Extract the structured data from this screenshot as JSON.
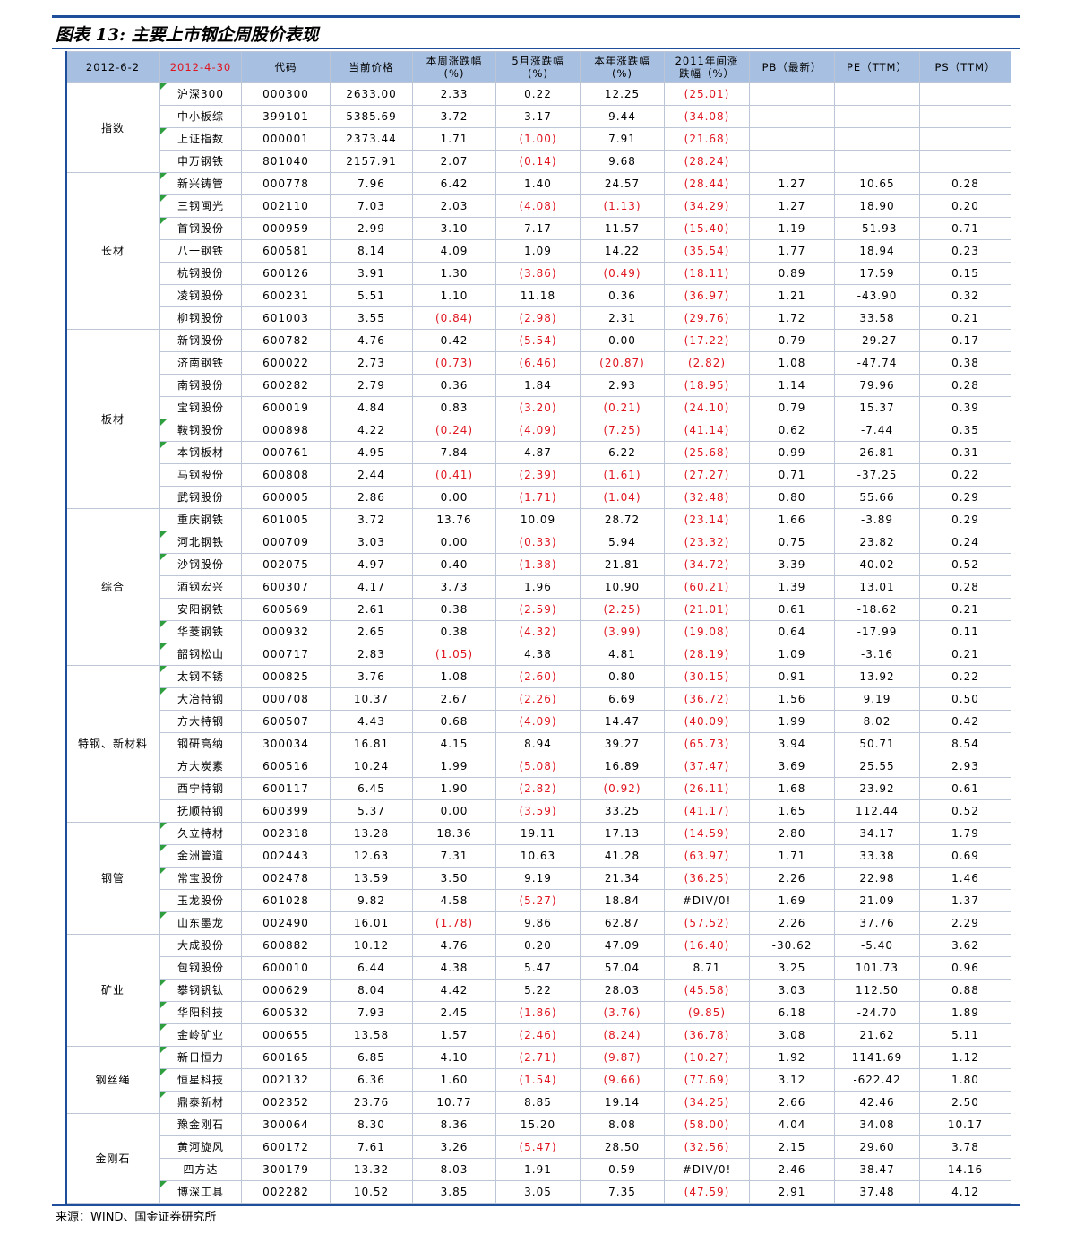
{
  "title": "图表 13:  主要上市钢企周股价表现",
  "source": "来源：WIND、国金证券研究所",
  "colors": {
    "negative": "#e0141e",
    "header_bg": "#a7bfe0",
    "rule": "#1f4e9a",
    "marker": "#2e9e3e"
  },
  "columns": [
    "2012-6-2",
    "2012-4-30",
    "代码",
    "当前价格",
    "本周涨跌幅\n(%)",
    "5月涨跌幅\n(%)",
    "本年涨跌幅\n(%)",
    "2011年间涨\n跌幅（%）",
    "PB（最新）",
    "PE（TTM）",
    "PS（TTM）"
  ],
  "groups": [
    {
      "name": "指数",
      "rows": [
        {
          "name": "沪深300",
          "m": 1,
          "code": "000300",
          "price": "2633.00",
          "w": "2.33",
          "mo": "0.22",
          "y": "12.25",
          "y11": "(25.01)",
          "pb": "",
          "pe": "",
          "ps": ""
        },
        {
          "name": "中小板综",
          "m": 0,
          "code": "399101",
          "price": "5385.69",
          "w": "3.72",
          "mo": "3.17",
          "y": "9.44",
          "y11": "(34.08)",
          "pb": "",
          "pe": "",
          "ps": ""
        },
        {
          "name": "上证指数",
          "m": 1,
          "code": "000001",
          "price": "2373.44",
          "w": "1.71",
          "mo": "(1.00)",
          "y": "7.91",
          "y11": "(21.68)",
          "pb": "",
          "pe": "",
          "ps": ""
        },
        {
          "name": "申万钢铁",
          "m": 0,
          "code": "801040",
          "price": "2157.91",
          "w": "2.07",
          "mo": "(0.14)",
          "y": "9.68",
          "y11": "(28.24)",
          "pb": "",
          "pe": "",
          "ps": ""
        }
      ]
    },
    {
      "name": "长材",
      "rows": [
        {
          "name": "新兴铸管",
          "m": 1,
          "code": "000778",
          "price": "7.96",
          "w": "6.42",
          "mo": "1.40",
          "y": "24.57",
          "y11": "(28.44)",
          "pb": "1.27",
          "pe": "10.65",
          "ps": "0.28"
        },
        {
          "name": "三钢闽光",
          "m": 1,
          "code": "002110",
          "price": "7.03",
          "w": "2.03",
          "mo": "(4.08)",
          "y": "(1.13)",
          "y11": "(34.29)",
          "pb": "1.27",
          "pe": "18.90",
          "ps": "0.20"
        },
        {
          "name": "首钢股份",
          "m": 1,
          "code": "000959",
          "price": "2.99",
          "w": "3.10",
          "mo": "7.17",
          "y": "11.57",
          "y11": "(15.40)",
          "pb": "1.19",
          "pe": "-51.93",
          "ps": "0.71"
        },
        {
          "name": "八一钢铁",
          "m": 0,
          "code": "600581",
          "price": "8.14",
          "w": "4.09",
          "mo": "1.09",
          "y": "14.22",
          "y11": "(35.54)",
          "pb": "1.77",
          "pe": "18.94",
          "ps": "0.23"
        },
        {
          "name": "杭钢股份",
          "m": 0,
          "code": "600126",
          "price": "3.91",
          "w": "1.30",
          "mo": "(3.86)",
          "y": "(0.49)",
          "y11": "(18.11)",
          "pb": "0.89",
          "pe": "17.59",
          "ps": "0.15"
        },
        {
          "name": "凌钢股份",
          "m": 0,
          "code": "600231",
          "price": "5.51",
          "w": "1.10",
          "mo": "11.18",
          "y": "0.36",
          "y11": "(36.97)",
          "pb": "1.21",
          "pe": "-43.90",
          "ps": "0.32"
        },
        {
          "name": "柳钢股份",
          "m": 0,
          "code": "601003",
          "price": "3.55",
          "w": "(0.84)",
          "mo": "(2.98)",
          "y": "2.31",
          "y11": "(29.76)",
          "pb": "1.72",
          "pe": "33.58",
          "ps": "0.21"
        }
      ]
    },
    {
      "name": "板材",
      "rows": [
        {
          "name": "新钢股份",
          "m": 0,
          "code": "600782",
          "price": "4.76",
          "w": "0.42",
          "mo": "(5.54)",
          "y": "0.00",
          "y11": "(17.22)",
          "pb": "0.79",
          "pe": "-29.27",
          "ps": "0.17"
        },
        {
          "name": "济南钢铁",
          "m": 0,
          "code": "600022",
          "price": "2.73",
          "w": "(0.73)",
          "mo": "(6.46)",
          "y": "(20.87)",
          "y11": "(2.82)",
          "pb": "1.08",
          "pe": "-47.74",
          "ps": "0.38"
        },
        {
          "name": "南钢股份",
          "m": 0,
          "code": "600282",
          "price": "2.79",
          "w": "0.36",
          "mo": "1.84",
          "y": "2.93",
          "y11": "(18.95)",
          "pb": "1.14",
          "pe": "79.96",
          "ps": "0.28"
        },
        {
          "name": "宝钢股份",
          "m": 0,
          "code": "600019",
          "price": "4.84",
          "w": "0.83",
          "mo": "(3.20)",
          "y": "(0.21)",
          "y11": "(24.10)",
          "pb": "0.79",
          "pe": "15.37",
          "ps": "0.39"
        },
        {
          "name": "鞍钢股份",
          "m": 1,
          "code": "000898",
          "price": "4.22",
          "w": "(0.24)",
          "mo": "(4.09)",
          "y": "(7.25)",
          "y11": "(41.14)",
          "pb": "0.62",
          "pe": "-7.44",
          "ps": "0.35"
        },
        {
          "name": "本钢板材",
          "m": 1,
          "code": "000761",
          "price": "4.95",
          "w": "7.84",
          "mo": "4.87",
          "y": "6.22",
          "y11": "(25.68)",
          "pb": "0.99",
          "pe": "26.81",
          "ps": "0.31"
        },
        {
          "name": "马钢股份",
          "m": 0,
          "code": "600808",
          "price": "2.44",
          "w": "(0.41)",
          "mo": "(2.39)",
          "y": "(1.61)",
          "y11": "(27.27)",
          "pb": "0.71",
          "pe": "-37.25",
          "ps": "0.22"
        },
        {
          "name": "武钢股份",
          "m": 0,
          "code": "600005",
          "price": "2.86",
          "w": "0.00",
          "mo": "(1.71)",
          "y": "(1.04)",
          "y11": "(32.48)",
          "pb": "0.80",
          "pe": "55.66",
          "ps": "0.29"
        }
      ]
    },
    {
      "name": "综合",
      "rows": [
        {
          "name": "重庆钢铁",
          "m": 0,
          "code": "601005",
          "price": "3.72",
          "w": "13.76",
          "mo": "10.09",
          "y": "28.72",
          "y11": "(23.14)",
          "pb": "1.66",
          "pe": "-3.89",
          "ps": "0.29"
        },
        {
          "name": "河北钢铁",
          "m": 1,
          "code": "000709",
          "price": "3.03",
          "w": "0.00",
          "mo": "(0.33)",
          "y": "5.94",
          "y11": "(23.32)",
          "pb": "0.75",
          "pe": "23.82",
          "ps": "0.24"
        },
        {
          "name": "沙钢股份",
          "m": 1,
          "code": "002075",
          "price": "4.97",
          "w": "0.40",
          "mo": "(1.38)",
          "y": "21.81",
          "y11": "(34.72)",
          "pb": "3.39",
          "pe": "40.02",
          "ps": "0.52"
        },
        {
          "name": "酒钢宏兴",
          "m": 0,
          "code": "600307",
          "price": "4.17",
          "w": "3.73",
          "mo": "1.96",
          "y": "10.90",
          "y11": "(60.21)",
          "pb": "1.39",
          "pe": "13.01",
          "ps": "0.28"
        },
        {
          "name": "安阳钢铁",
          "m": 0,
          "code": "600569",
          "price": "2.61",
          "w": "0.38",
          "mo": "(2.59)",
          "y": "(2.25)",
          "y11": "(21.01)",
          "pb": "0.61",
          "pe": "-18.62",
          "ps": "0.21"
        },
        {
          "name": "华菱钢铁",
          "m": 1,
          "code": "000932",
          "price": "2.65",
          "w": "0.38",
          "mo": "(4.32)",
          "y": "(3.99)",
          "y11": "(19.08)",
          "pb": "0.64",
          "pe": "-17.99",
          "ps": "0.11"
        },
        {
          "name": "韶钢松山",
          "m": 1,
          "code": "000717",
          "price": "2.83",
          "w": "(1.05)",
          "mo": "4.38",
          "y": "4.81",
          "y11": "(28.19)",
          "pb": "1.09",
          "pe": "-3.16",
          "ps": "0.21"
        }
      ]
    },
    {
      "name": "特钢、新材料",
      "rows": [
        {
          "name": "太钢不锈",
          "m": 1,
          "code": "000825",
          "price": "3.76",
          "w": "1.08",
          "mo": "(2.60)",
          "y": "0.80",
          "y11": "(30.15)",
          "pb": "0.91",
          "pe": "13.92",
          "ps": "0.22"
        },
        {
          "name": "大冶特钢",
          "m": 1,
          "code": "000708",
          "price": "10.37",
          "w": "2.67",
          "mo": "(2.26)",
          "y": "6.69",
          "y11": "(36.72)",
          "pb": "1.56",
          "pe": "9.19",
          "ps": "0.50"
        },
        {
          "name": "方大特钢",
          "m": 0,
          "code": "600507",
          "price": "4.43",
          "w": "0.68",
          "mo": "(4.09)",
          "y": "14.47",
          "y11": "(40.09)",
          "pb": "1.99",
          "pe": "8.02",
          "ps": "0.42"
        },
        {
          "name": "钢研高纳",
          "m": 0,
          "code": "300034",
          "price": "16.81",
          "w": "4.15",
          "mo": "8.94",
          "y": "39.27",
          "y11": "(65.73)",
          "pb": "3.94",
          "pe": "50.71",
          "ps": "8.54"
        },
        {
          "name": "方大炭素",
          "m": 0,
          "code": "600516",
          "price": "10.24",
          "w": "1.99",
          "mo": "(5.08)",
          "y": "16.89",
          "y11": "(37.47)",
          "pb": "3.69",
          "pe": "25.55",
          "ps": "2.93"
        },
        {
          "name": "西宁特钢",
          "m": 0,
          "code": "600117",
          "price": "6.45",
          "w": "1.90",
          "mo": "(2.82)",
          "y": "(0.92)",
          "y11": "(26.11)",
          "pb": "1.68",
          "pe": "23.92",
          "ps": "0.61"
        },
        {
          "name": "抚顺特钢",
          "m": 0,
          "code": "600399",
          "price": "5.37",
          "w": "0.00",
          "mo": "(3.59)",
          "y": "33.25",
          "y11": "(41.17)",
          "pb": "1.65",
          "pe": "112.44",
          "ps": "0.52"
        }
      ]
    },
    {
      "name": "钢管",
      "rows": [
        {
          "name": "久立特材",
          "m": 1,
          "code": "002318",
          "price": "13.28",
          "w": "18.36",
          "mo": "19.11",
          "y": "17.13",
          "y11": "(14.59)",
          "pb": "2.80",
          "pe": "34.17",
          "ps": "1.79"
        },
        {
          "name": "金洲管道",
          "m": 1,
          "code": "002443",
          "price": "12.63",
          "w": "7.31",
          "mo": "10.63",
          "y": "41.28",
          "y11": "(63.97)",
          "pb": "1.71",
          "pe": "33.38",
          "ps": "0.69"
        },
        {
          "name": "常宝股份",
          "m": 1,
          "code": "002478",
          "price": "13.59",
          "w": "3.50",
          "mo": "9.19",
          "y": "21.34",
          "y11": "(36.25)",
          "pb": "2.26",
          "pe": "22.98",
          "ps": "1.46"
        },
        {
          "name": "玉龙股份",
          "m": 0,
          "code": "601028",
          "price": "9.82",
          "w": "4.58",
          "mo": "(5.27)",
          "y": "18.84",
          "y11": "#DIV/0!",
          "pb": "1.69",
          "pe": "21.09",
          "ps": "1.37"
        },
        {
          "name": "山东墨龙",
          "m": 1,
          "code": "002490",
          "price": "16.01",
          "w": "(1.78)",
          "mo": "9.86",
          "y": "62.87",
          "y11": "(57.52)",
          "pb": "2.26",
          "pe": "37.76",
          "ps": "2.29"
        }
      ]
    },
    {
      "name": "矿业",
      "rows": [
        {
          "name": "大成股份",
          "m": 0,
          "code": "600882",
          "price": "10.12",
          "w": "4.76",
          "mo": "0.20",
          "y": "47.09",
          "y11": "(16.40)",
          "pb": "-30.62",
          "pe": "-5.40",
          "ps": "3.62"
        },
        {
          "name": "包钢股份",
          "m": 0,
          "code": "600010",
          "price": "6.44",
          "w": "4.38",
          "mo": "5.47",
          "y": "57.04",
          "y11": "8.71",
          "pb": "3.25",
          "pe": "101.73",
          "ps": "0.96"
        },
        {
          "name": "攀钢钒钛",
          "m": 1,
          "code": "000629",
          "price": "8.04",
          "w": "4.42",
          "mo": "5.22",
          "y": "28.03",
          "y11": "(45.58)",
          "pb": "3.03",
          "pe": "112.50",
          "ps": "0.88"
        },
        {
          "name": "华阳科技",
          "m": 1,
          "code": "600532",
          "price": "7.93",
          "w": "2.45",
          "mo": "(1.86)",
          "y": "(3.76)",
          "y11": "(9.85)",
          "pb": "6.18",
          "pe": "-24.70",
          "ps": "1.89"
        },
        {
          "name": "金岭矿业",
          "m": 1,
          "code": "000655",
          "price": "13.58",
          "w": "1.57",
          "mo": "(2.46)",
          "y": "(8.24)",
          "y11": "(36.78)",
          "pb": "3.08",
          "pe": "21.62",
          "ps": "5.11"
        }
      ]
    },
    {
      "name": "钢丝绳",
      "rows": [
        {
          "name": "新日恒力",
          "m": 1,
          "code": "600165",
          "price": "6.85",
          "w": "4.10",
          "mo": "(2.71)",
          "y": "(9.87)",
          "y11": "(10.27)",
          "pb": "1.92",
          "pe": "1141.69",
          "ps": "1.12"
        },
        {
          "name": "恒星科技",
          "m": 1,
          "code": "002132",
          "price": "6.36",
          "w": "1.60",
          "mo": "(1.54)",
          "y": "(9.66)",
          "y11": "(77.69)",
          "pb": "3.12",
          "pe": "-622.42",
          "ps": "1.80"
        },
        {
          "name": "鼎泰新材",
          "m": 1,
          "code": "002352",
          "price": "23.76",
          "w": "10.77",
          "mo": "8.85",
          "y": "19.14",
          "y11": "(34.25)",
          "pb": "2.66",
          "pe": "42.46",
          "ps": "2.50"
        }
      ]
    },
    {
      "name": "金刚石",
      "rows": [
        {
          "name": "豫金刚石",
          "m": 0,
          "code": "300064",
          "price": "8.30",
          "w": "8.36",
          "mo": "15.20",
          "y": "8.08",
          "y11": "(58.00)",
          "pb": "4.04",
          "pe": "34.08",
          "ps": "10.17"
        },
        {
          "name": "黄河旋风",
          "m": 0,
          "code": "600172",
          "price": "7.61",
          "w": "3.26",
          "mo": "(5.47)",
          "y": "28.50",
          "y11": "(32.56)",
          "pb": "2.15",
          "pe": "29.60",
          "ps": "3.78"
        },
        {
          "name": "四方达",
          "m": 0,
          "code": "300179",
          "price": "13.32",
          "w": "8.03",
          "mo": "1.91",
          "y": "0.59",
          "y11": "#DIV/0!",
          "pb": "2.46",
          "pe": "38.47",
          "ps": "14.16"
        },
        {
          "name": "博深工具",
          "m": 1,
          "code": "002282",
          "price": "10.52",
          "w": "3.85",
          "mo": "3.05",
          "y": "7.35",
          "y11": "(47.59)",
          "pb": "2.91",
          "pe": "37.48",
          "ps": "4.12"
        }
      ]
    }
  ]
}
